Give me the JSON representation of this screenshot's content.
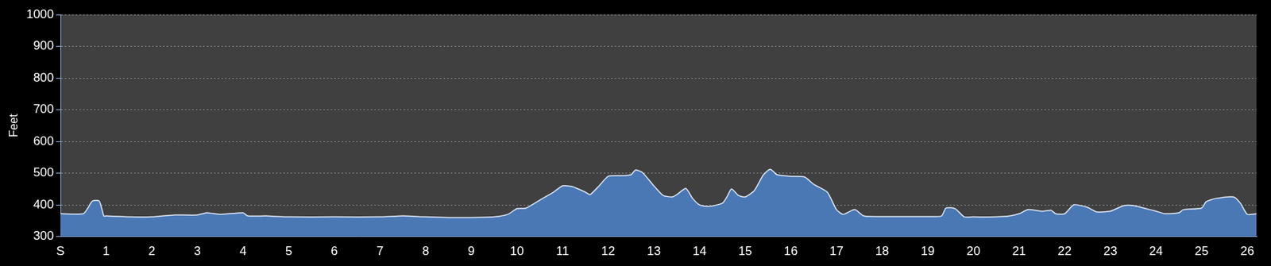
{
  "chart_data": {
    "type": "area",
    "y_label": "Feet",
    "x": [
      0,
      0.5,
      0.6,
      0.7,
      0.85,
      0.95,
      1,
      1.5,
      2,
      2.5,
      3,
      3.2,
      3.5,
      4,
      4.1,
      4.5,
      5,
      6,
      7,
      7.5,
      8,
      8.5,
      9,
      9.5,
      9.8,
      10,
      10.2,
      10.5,
      10.8,
      11,
      11.2,
      11.5,
      11.6,
      11.8,
      12,
      12.3,
      12.5,
      12.6,
      12.75,
      13,
      13.2,
      13.4,
      13.5,
      13.7,
      13.85,
      14,
      14.2,
      14.5,
      14.6,
      14.7,
      14.85,
      15,
      15.2,
      15.4,
      15.55,
      15.7,
      16,
      16.3,
      16.5,
      16.8,
      17,
      17.15,
      17.4,
      17.6,
      18,
      19,
      19.3,
      19.4,
      19.6,
      19.8,
      20,
      20.5,
      20.8,
      21,
      21.2,
      21.5,
      21.7,
      21.8,
      22,
      22.2,
      22.5,
      22.7,
      23,
      23.3,
      23.5,
      24,
      24.2,
      24.5,
      24.6,
      25,
      25.1,
      25.3,
      25.7,
      25.85,
      26,
      26.2
    ],
    "values": [
      372,
      372,
      390,
      412,
      412,
      365,
      365,
      362,
      362,
      368,
      368,
      375,
      370,
      375,
      365,
      365,
      362,
      362,
      362,
      365,
      362,
      360,
      360,
      362,
      370,
      388,
      390,
      415,
      440,
      460,
      458,
      440,
      432,
      460,
      490,
      492,
      495,
      510,
      502,
      460,
      430,
      425,
      432,
      452,
      420,
      400,
      395,
      405,
      425,
      450,
      430,
      425,
      445,
      495,
      512,
      495,
      490,
      488,
      465,
      440,
      385,
      370,
      385,
      365,
      363,
      363,
      365,
      390,
      388,
      362,
      362,
      362,
      365,
      372,
      385,
      380,
      383,
      372,
      372,
      400,
      392,
      378,
      380,
      398,
      398,
      380,
      372,
      375,
      385,
      390,
      410,
      420,
      425,
      405,
      370,
      372
    ],
    "color": "#4a78b5",
    "xlim": [
      0,
      26.2
    ],
    "xticks": [
      {
        "value": 0,
        "label": "S"
      },
      1,
      2,
      3,
      4,
      5,
      6,
      7,
      8,
      9,
      10,
      11,
      12,
      13,
      14,
      15,
      16,
      17,
      18,
      19,
      20,
      21,
      22,
      23,
      24,
      25,
      26
    ],
    "ylim": [
      300,
      1000
    ],
    "yticks": [
      300,
      400,
      500,
      600,
      700,
      800,
      900,
      1000
    ],
    "grid": true
  }
}
